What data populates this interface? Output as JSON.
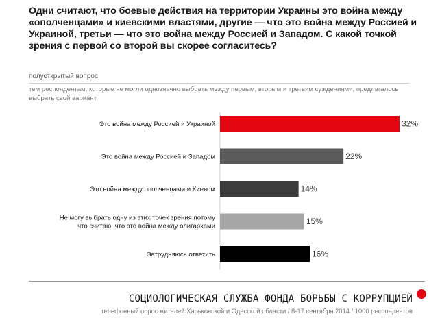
{
  "header": {
    "title": "Одни считают, что боевые действия на территории Украины это война между «ополченцами» и киевскими властями, другие — что это война между Россией и Украиной, третьи — что это война между Россией и Западом. С какой точкой зрения с первой со второй вы скорее согласитесь?",
    "question_type": "полуоткрытый вопрос",
    "note": "тем респондентам, которые не могли однозначно выбрать между первым, вторым и третьим суждениями, предлагалось выбрать свой вариант"
  },
  "chart_data": {
    "type": "bar",
    "orientation": "horizontal",
    "categories": [
      "Это война между Россией и Украиной",
      "Это война между Россией и Западом",
      "Это война между ополченцами и Киевом",
      "Не могу выбрать одну из этих точек зрения потому что считаю, что это война между олигархами",
      "Затрудняюсь ответить"
    ],
    "category_lines": [
      [
        "Это война между Россией и Украиной"
      ],
      [
        "Это война между Россией и Западом"
      ],
      [
        "Это война между ополченцами и Киевом"
      ],
      [
        "Не могу выбрать одну из этих точек зрения потому",
        "что считаю, что это война между олигархами"
      ],
      [
        "Затрудняюсь ответить"
      ]
    ],
    "values": [
      32,
      22,
      14,
      15,
      16
    ],
    "value_labels": [
      "32%",
      "22%",
      "14%",
      "15%",
      "16%"
    ],
    "colors": [
      "#e30613",
      "#5a5a5a",
      "#3c3c3c",
      "#a6a6a6",
      "#000000"
    ],
    "unit": "%",
    "xlim": [
      0,
      32
    ],
    "grid": false,
    "legend": "none"
  },
  "footer": {
    "organization": "СОЦИОЛОГИЧЕСКАЯ СЛУЖБА ФОНДА БОРЬБЫ С КОРРУПЦИЕЙ",
    "methodology": "телефонный опрос жителей Харьковской и Одесской области / 8-17 сентября 2014 / 1000 респондентов",
    "accent_color": "#e30613"
  }
}
